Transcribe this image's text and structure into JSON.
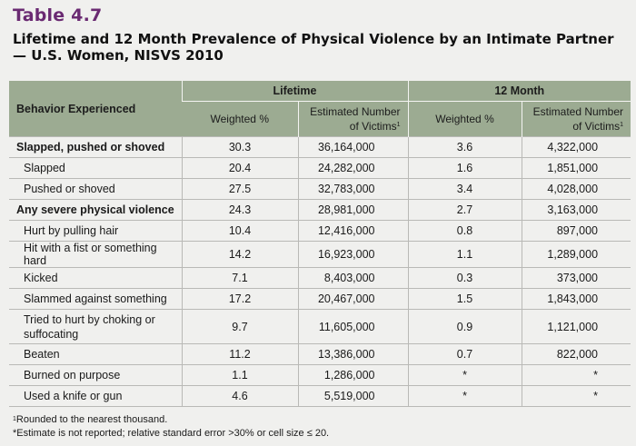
{
  "table_label": "Table 4.7",
  "title": "Lifetime and 12 Month Prevalence of Physical Violence by an Intimate Partner — U.S. Women, NISVS 2010",
  "header": {
    "behavior": "Behavior Experienced",
    "groups": [
      "Lifetime",
      "12 Month"
    ],
    "weighted": "Weighted %",
    "estimated": "Estimated Number of Victims",
    "estimated_sup": "1"
  },
  "rows": [
    {
      "label": "Slapped, pushed or shoved",
      "bold": true,
      "lw": "30.3",
      "le": "36,164,000",
      "mw": "3.6",
      "me": "4,322,000"
    },
    {
      "label": "Slapped",
      "lw": "20.4",
      "le": "24,282,000",
      "mw": "1.6",
      "me": "1,851,000"
    },
    {
      "label": "Pushed or shoved",
      "lw": "27.5",
      "le": "32,783,000",
      "mw": "3.4",
      "me": "4,028,000"
    },
    {
      "label": "Any severe physical violence",
      "bold": true,
      "lw": "24.3",
      "le": "28,981,000",
      "mw": "2.7",
      "me": "3,163,000"
    },
    {
      "label": "Hurt by pulling hair",
      "lw": "10.4",
      "le": "12,416,000",
      "mw": "0.8",
      "me": "897,000"
    },
    {
      "label": "Hit with a fist or something hard",
      "lw": "14.2",
      "le": "16,923,000",
      "mw": "1.1",
      "me": "1,289,000"
    },
    {
      "label": "Kicked",
      "lw": "7.1",
      "le": "8,403,000",
      "mw": "0.3",
      "me": "373,000"
    },
    {
      "label": "Slammed against something",
      "lw": "17.2",
      "le": "20,467,000",
      "mw": "1.5",
      "me": "1,843,000"
    },
    {
      "label": "Tried to hurt by choking or suffocating",
      "tall": true,
      "lw": "9.7",
      "le": "11,605,000",
      "mw": "0.9",
      "me": "1,121,000"
    },
    {
      "label": "Beaten",
      "lw": "11.2",
      "le": "13,386,000",
      "mw": "0.7",
      "me": "822,000"
    },
    {
      "label": "Burned on purpose",
      "lw": "1.1",
      "le": "1,286,000",
      "mw": "*",
      "me": "*"
    },
    {
      "label": "Used a knife or gun",
      "lw": "4.6",
      "le": "5,519,000",
      "mw": "*",
      "me": "*"
    }
  ],
  "footnotes": {
    "note1_sup": "1",
    "note1": "Rounded to the nearest thousand.",
    "note2": "*Estimate is not reported; relative standard error >30% or cell size ≤ 20."
  },
  "colors": {
    "title_purple": "#6a2a72",
    "header_green": "#9cab92",
    "background": "#f0f0ee"
  }
}
